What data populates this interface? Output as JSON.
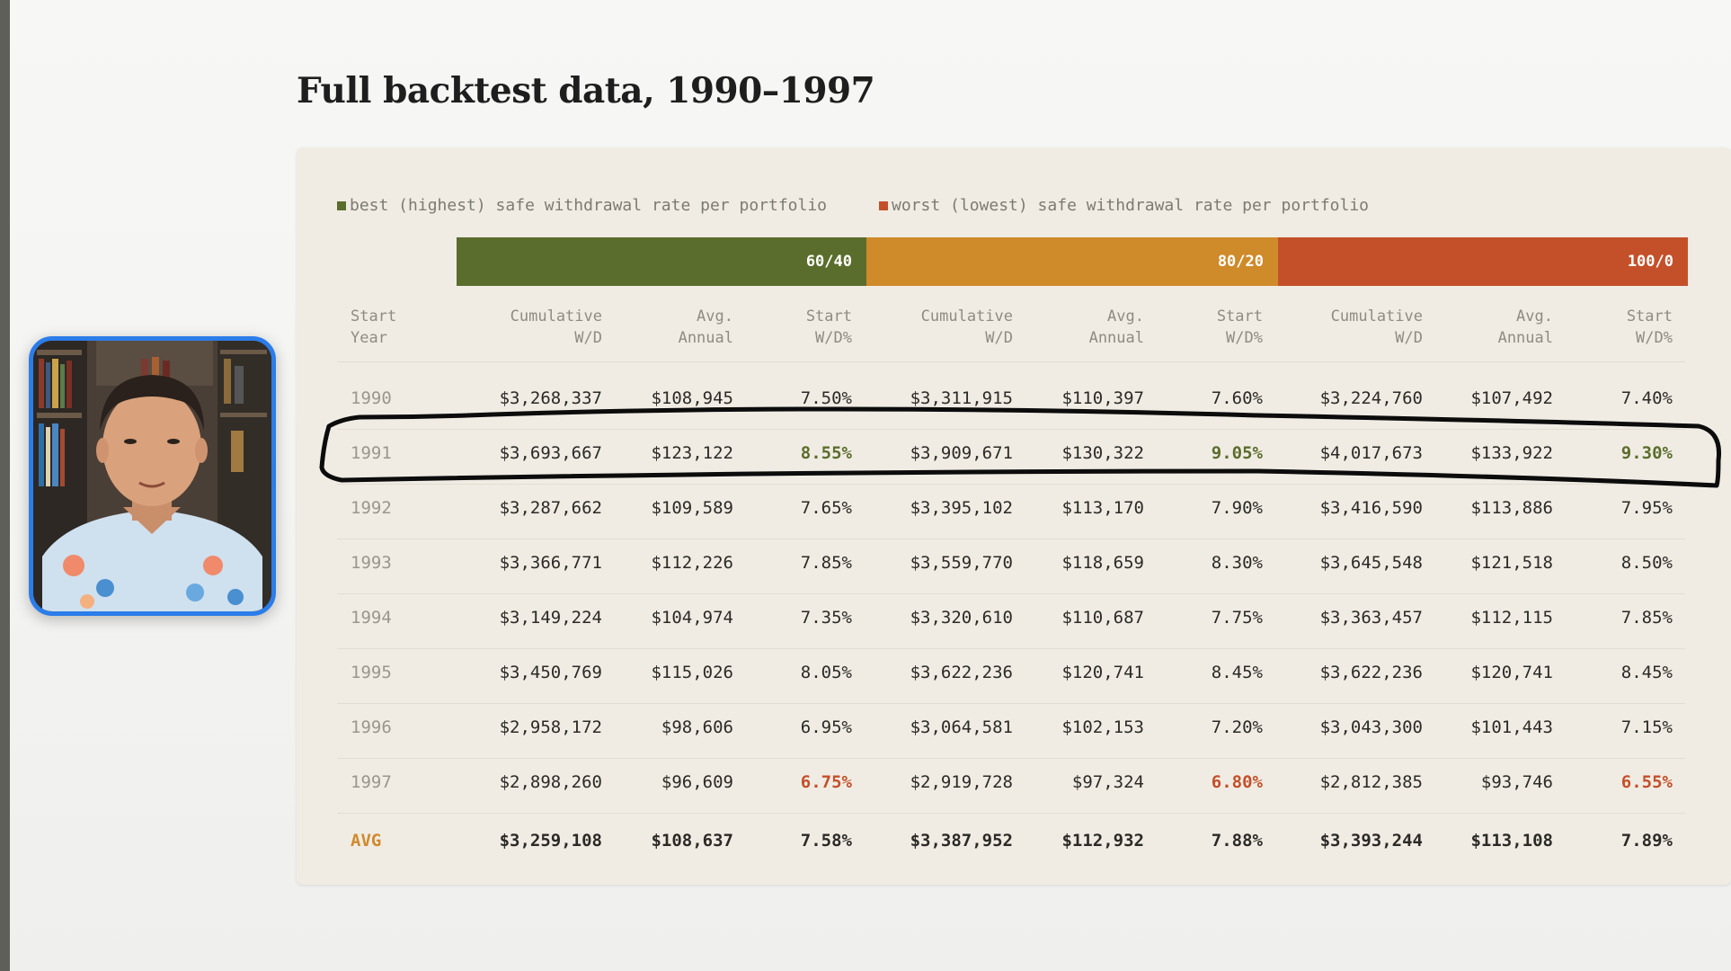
{
  "slide": {
    "title": "Full backtest data, 1990–1997"
  },
  "legend": {
    "best": "best (highest) safe withdrawal rate per portfolio",
    "worst": "worst (lowest) safe withdrawal rate per portfolio",
    "best_color": "#5b6d2c",
    "worst_color": "#c4502a"
  },
  "portfolios": [
    {
      "label": "60/40",
      "color": "#5b6d2c"
    },
    {
      "label": "80/20",
      "color": "#cf8a2a"
    },
    {
      "label": "100/0",
      "color": "#c4502a"
    }
  ],
  "columns": {
    "start_year": [
      "Start",
      "Year"
    ],
    "cumulative": [
      "Cumulative",
      "W/D"
    ],
    "avg_annual": [
      "Avg.",
      "Annual"
    ],
    "start_wd": [
      "Start",
      "W/D%"
    ]
  },
  "rows": [
    {
      "year": "1990",
      "values": [
        "$3,268,337",
        "$108,945",
        "7.50%",
        "$3,311,915",
        "$110,397",
        "7.60%",
        "$3,224,760",
        "$107,492",
        "7.40%"
      ]
    },
    {
      "year": "1991",
      "values": [
        "$3,693,667",
        "$123,122",
        "8.55%",
        "$3,909,671",
        "$130,322",
        "9.05%",
        "$4,017,673",
        "$133,922",
        "9.30%"
      ]
    },
    {
      "year": "1992",
      "values": [
        "$3,287,662",
        "$109,589",
        "7.65%",
        "$3,395,102",
        "$113,170",
        "7.90%",
        "$3,416,590",
        "$113,886",
        "7.95%"
      ]
    },
    {
      "year": "1993",
      "values": [
        "$3,366,771",
        "$112,226",
        "7.85%",
        "$3,559,770",
        "$118,659",
        "8.30%",
        "$3,645,548",
        "$121,518",
        "8.50%"
      ]
    },
    {
      "year": "1994",
      "values": [
        "$3,149,224",
        "$104,974",
        "7.35%",
        "$3,320,610",
        "$110,687",
        "7.75%",
        "$3,363,457",
        "$112,115",
        "7.85%"
      ]
    },
    {
      "year": "1995",
      "values": [
        "$3,450,769",
        "$115,026",
        "8.05%",
        "$3,622,236",
        "$120,741",
        "8.45%",
        "$3,622,236",
        "$120,741",
        "8.45%"
      ]
    },
    {
      "year": "1996",
      "values": [
        "$2,958,172",
        "$98,606",
        "6.95%",
        "$3,064,581",
        "$102,153",
        "7.20%",
        "$3,043,300",
        "$101,443",
        "7.15%"
      ]
    },
    {
      "year": "1997",
      "values": [
        "$2,898,260",
        "$96,609",
        "6.75%",
        "$2,919,728",
        "$97,324",
        "6.80%",
        "$2,812,385",
        "$93,746",
        "6.55%"
      ]
    }
  ],
  "avg_row": {
    "label": "AVG",
    "values": [
      "$3,259,108",
      "$108,637",
      "7.58%",
      "$3,387,952",
      "$112,932",
      "7.88%",
      "$3,393,244",
      "$113,108",
      "7.89%"
    ]
  },
  "highlight": {
    "best_year": "1991",
    "worst_year": "1997",
    "annotated_year": "1991"
  }
}
